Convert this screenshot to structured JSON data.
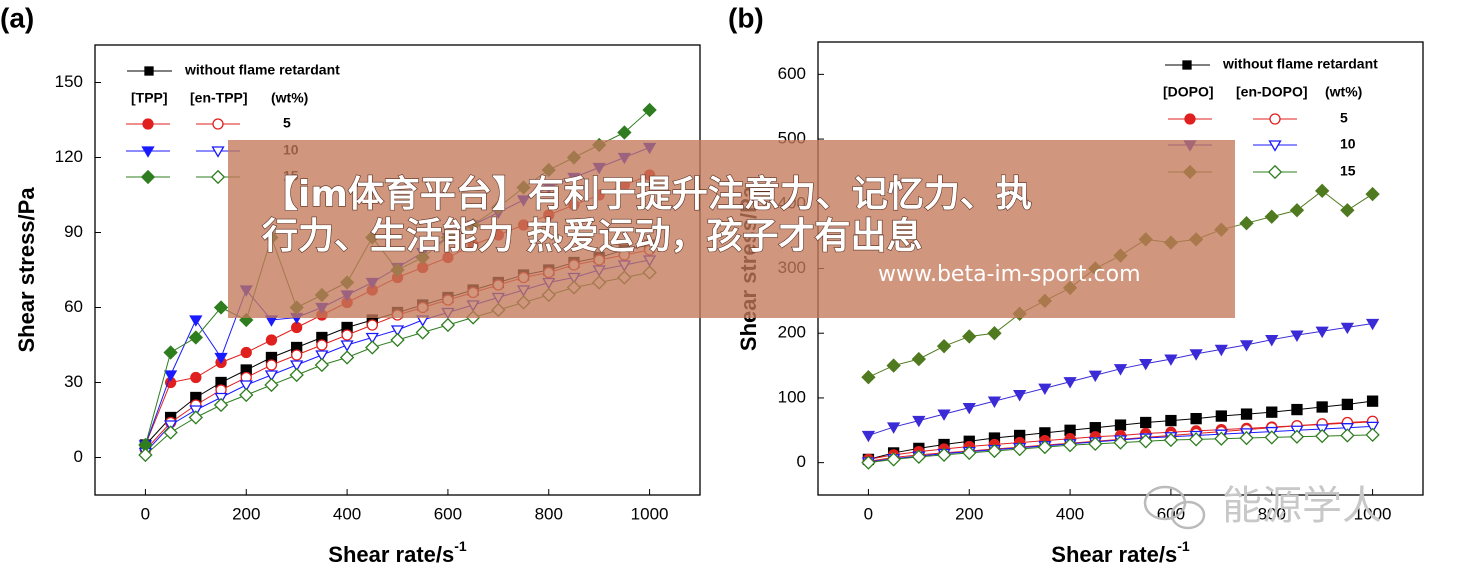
{
  "chart_data": [
    {
      "type": "scatter",
      "panel_label": "(a)",
      "xlabel": "Shear rate/s",
      "xlabel_sup": "-1",
      "ylabel": "Shear stress/Pa",
      "xlim": [
        -100,
        1100
      ],
      "xticks": [
        0,
        200,
        400,
        600,
        800,
        1000
      ],
      "ylim": [
        -15,
        165
      ],
      "yticks": [
        0,
        30,
        60,
        90,
        120,
        150
      ],
      "legend_columns": [
        "[TPP]",
        "[en-TPP]"
      ],
      "legend_unit": "(wt%)",
      "x": [
        0,
        50,
        100,
        150,
        200,
        250,
        300,
        350,
        400,
        450,
        500,
        550,
        600,
        650,
        700,
        750,
        800,
        850,
        900,
        950,
        1000
      ],
      "series": [
        {
          "name": "without flame retardant",
          "color": "#000000",
          "marker": "square",
          "filled": true,
          "values": [
            5,
            16,
            24,
            30,
            35,
            40,
            44,
            48,
            52,
            55,
            58,
            61,
            64,
            67,
            70,
            73,
            75,
            78,
            80,
            83,
            85
          ]
        },
        {
          "name": "5",
          "color": "#e0201e",
          "marker": "circle",
          "filled": true,
          "values": [
            5,
            30,
            32,
            38,
            42,
            47,
            52,
            57,
            62,
            67,
            72,
            76,
            80,
            85,
            89,
            93,
            97,
            101,
            105,
            109,
            113
          ]
        },
        {
          "color": "#e0201e",
          "marker": "circle",
          "filled": false,
          "values": [
            3,
            14,
            21,
            27,
            32,
            37,
            41,
            45,
            49,
            53,
            57,
            60,
            63,
            66,
            69,
            72,
            74,
            77,
            79,
            81,
            83
          ]
        },
        {
          "name": "10",
          "color": "#1a1aff",
          "marker": "triangle-down",
          "filled": true,
          "values": [
            5,
            33,
            55,
            40,
            67,
            55,
            56,
            60,
            65,
            70,
            76,
            82,
            88,
            93,
            98,
            103,
            108,
            112,
            116,
            120,
            124
          ]
        },
        {
          "color": "#1a1aff",
          "marker": "triangle-down",
          "filled": false,
          "values": [
            2,
            13,
            19,
            24,
            29,
            33,
            37,
            41,
            45,
            48,
            51,
            55,
            58,
            61,
            64,
            67,
            70,
            72,
            75,
            77,
            79
          ]
        },
        {
          "name": "15",
          "color": "#2e7d1f",
          "marker": "diamond",
          "filled": true,
          "values": [
            5,
            42,
            48,
            60,
            55,
            88,
            60,
            65,
            70,
            88,
            75,
            80,
            88,
            93,
            100,
            108,
            115,
            120,
            125,
            130,
            139
          ]
        },
        {
          "color": "#2e7d1f",
          "marker": "diamond",
          "filled": false,
          "values": [
            1,
            10,
            16,
            21,
            25,
            29,
            33,
            37,
            40,
            44,
            47,
            50,
            53,
            56,
            59,
            62,
            65,
            68,
            70,
            72,
            74
          ]
        }
      ]
    },
    {
      "type": "scatter",
      "panel_label": "(b)",
      "xlabel": "Shear rate/s",
      "xlabel_sup": "-1",
      "ylabel": "Shear stress/Pa",
      "xlim": [
        -100,
        1100
      ],
      "xticks": [
        0,
        200,
        400,
        600,
        800,
        1000
      ],
      "ylim": [
        -50,
        650
      ],
      "yticks": [
        0,
        100,
        200,
        300,
        400,
        500,
        600
      ],
      "legend_columns": [
        "[DOPO]",
        "[en-DOPO]"
      ],
      "legend_unit": "(wt%)",
      "x": [
        0,
        50,
        100,
        150,
        200,
        250,
        300,
        350,
        400,
        450,
        500,
        550,
        600,
        650,
        700,
        750,
        800,
        850,
        900,
        950,
        1000
      ],
      "series": [
        {
          "name": "without flame retardant",
          "color": "#000000",
          "marker": "square",
          "filled": true,
          "values": [
            5,
            15,
            22,
            28,
            33,
            38,
            42,
            46,
            50,
            54,
            58,
            62,
            65,
            68,
            72,
            75,
            78,
            82,
            86,
            90,
            95
          ]
        },
        {
          "name": "5",
          "color": "#e0201e",
          "marker": "circle",
          "filled": true,
          "values": [
            5,
            12,
            17,
            21,
            25,
            28,
            31,
            34,
            37,
            40,
            42,
            45,
            47,
            49,
            51,
            53,
            55,
            57,
            59,
            61,
            63
          ]
        },
        {
          "color": "#e0201e",
          "marker": "circle",
          "filled": false,
          "values": [
            2,
            8,
            12,
            15,
            18,
            21,
            24,
            27,
            30,
            33,
            36,
            39,
            42,
            45,
            48,
            51,
            54,
            57,
            60,
            62,
            64
          ]
        },
        {
          "name": "10",
          "color": "#3b2bd6",
          "marker": "triangle-down",
          "filled": true,
          "values": [
            42,
            55,
            65,
            75,
            85,
            95,
            105,
            115,
            125,
            135,
            145,
            153,
            160,
            168,
            175,
            182,
            190,
            197,
            203,
            209,
            215
          ]
        },
        {
          "color": "#1a1aff",
          "marker": "triangle-down",
          "filled": false,
          "values": [
            1,
            6,
            10,
            14,
            17,
            20,
            23,
            26,
            29,
            32,
            35,
            38,
            40,
            42,
            44,
            46,
            48,
            50,
            52,
            54,
            56
          ]
        },
        {
          "name": "15",
          "color": "#4f7a1f",
          "marker": "diamond",
          "filled": true,
          "values": [
            132,
            150,
            160,
            180,
            195,
            200,
            230,
            250,
            270,
            300,
            320,
            345,
            340,
            345,
            360,
            370,
            380,
            390,
            420,
            390,
            415
          ]
        },
        {
          "color": "#2e7d1f",
          "marker": "diamond",
          "filled": false,
          "values": [
            0,
            5,
            9,
            12,
            15,
            18,
            21,
            24,
            27,
            29,
            31,
            33,
            35,
            36,
            37,
            38,
            39,
            40,
            41,
            42,
            43
          ]
        }
      ]
    }
  ],
  "banner": {
    "lines": [
      "【im体育平台】有利于提升注意力、记忆力、执",
      "行力、生活能力 热爱运动，孩子才有出息"
    ],
    "url": "www.beta-im-sport.com"
  },
  "watermark": "能源学人"
}
